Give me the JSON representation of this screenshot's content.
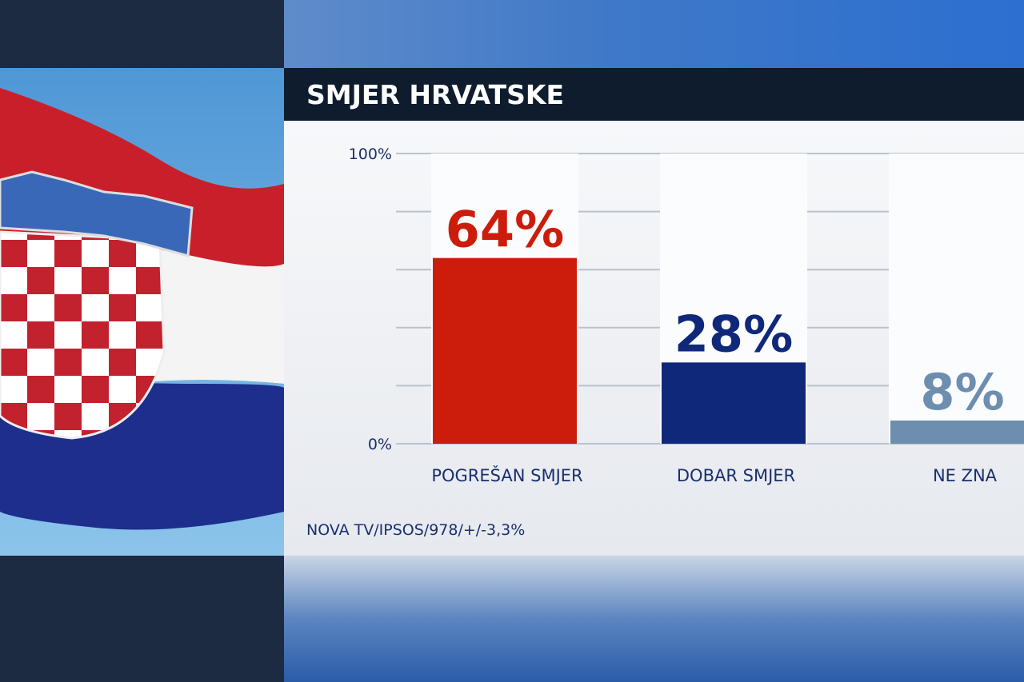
{
  "chart_data": {
    "type": "bar",
    "title": "SMJER HRVATSKE",
    "categories": [
      "POGREŠAN SMJER",
      "DOBAR SMJER",
      "NE ZNA"
    ],
    "values": [
      64,
      28,
      8
    ],
    "value_labels": [
      "64%",
      "28%",
      "8%"
    ],
    "colors": [
      "#cc1d0c",
      "#10287a",
      "#6d8eae"
    ],
    "ylim": [
      0,
      100
    ],
    "yticks": [
      {
        "value": 0,
        "label": "0%"
      },
      {
        "value": 20,
        "label": null
      },
      {
        "value": 40,
        "label": null
      },
      {
        "value": 60,
        "label": null
      },
      {
        "value": 80,
        "label": null
      },
      {
        "value": 100,
        "label": "100%"
      }
    ],
    "grid": true,
    "source": "NOVA TV/IPSOS/978/+/-3,3%"
  }
}
